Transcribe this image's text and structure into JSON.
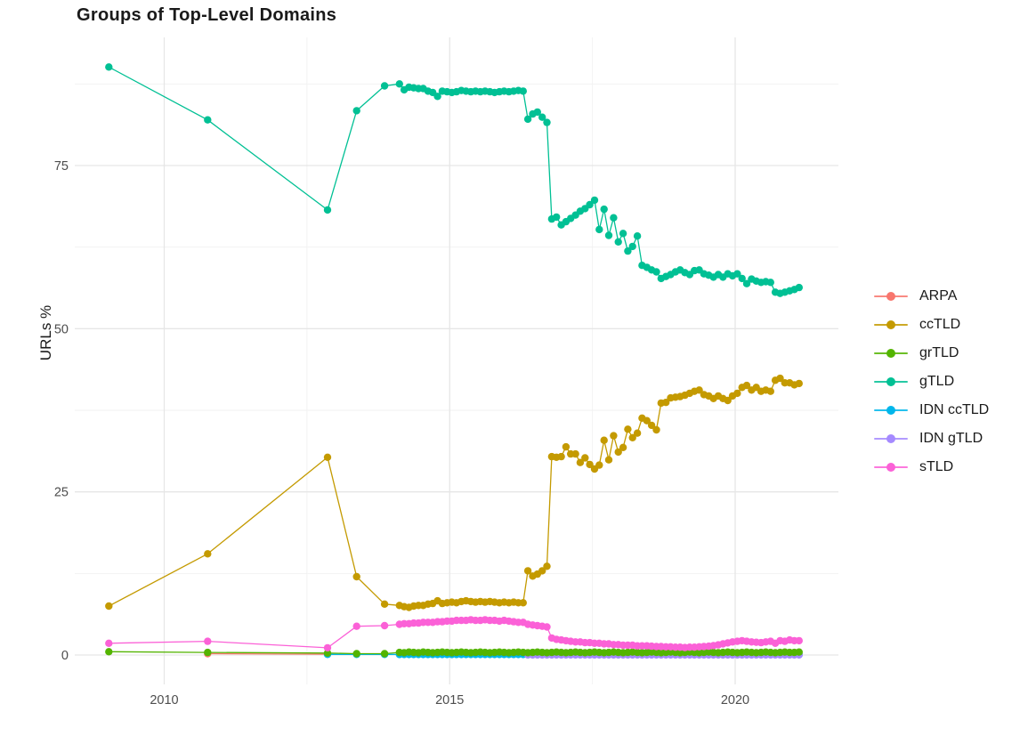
{
  "title": "Groups of Top-Level Domains",
  "chart_data": {
    "type": "line",
    "title": "Groups of Top-Level Domains",
    "xlabel": "",
    "ylabel": "URLs %",
    "xticks": [
      2010,
      2015,
      2020
    ],
    "yticks": [
      0,
      25,
      50,
      75
    ],
    "xlim": [
      2008.43,
      2021.72
    ],
    "ylim": [
      -4.5,
      94.6
    ],
    "grid": true,
    "legend_position": "right",
    "point_shape": "circle",
    "monthly_x_step": 0.0833333,
    "draw_order": [
      "ARPA",
      "IDN ccTLD",
      "IDN gTLD",
      "grTLD",
      "ccTLD",
      "gTLD",
      "sTLD"
    ],
    "series": [
      {
        "name": "ARPA",
        "color": "#F8766D",
        "sparse": [
          [
            2010.76,
            0.2
          ],
          [
            2012.86,
            0.12
          ]
        ],
        "monthly": null
      },
      {
        "name": "ccTLD",
        "color": "#C49A00",
        "sparse": [
          [
            2009.03,
            7.5
          ],
          [
            2010.76,
            15.5
          ],
          [
            2012.86,
            30.3
          ],
          [
            2013.37,
            12.0
          ],
          [
            2013.86,
            7.8
          ]
        ],
        "monthly": {
          "x_start": 2014.12,
          "values": [
            7.6,
            7.4,
            7.3,
            7.5,
            7.6,
            7.6,
            7.8,
            7.9,
            8.3,
            7.9,
            8.0,
            8.1,
            8.0,
            8.2,
            8.3,
            8.2,
            8.1,
            8.2,
            8.1,
            8.2,
            8.1,
            8.0,
            8.1,
            8.0,
            8.1,
            8.0,
            8.0,
            12.9,
            12.1,
            12.4,
            12.9,
            13.6,
            30.4,
            30.3,
            30.4,
            31.9,
            30.8,
            30.8,
            29.5,
            30.2,
            29.2,
            28.5,
            29.1,
            32.9,
            29.9,
            33.6,
            31.1,
            31.8,
            34.6,
            33.3,
            34.0,
            36.3,
            35.9,
            35.2,
            34.5,
            38.6,
            38.7,
            39.4,
            39.5,
            39.6,
            39.8,
            40.1,
            40.4,
            40.6,
            39.9,
            39.7,
            39.3,
            39.7,
            39.3,
            39.0,
            39.7,
            40.1,
            41.0,
            41.3,
            40.6,
            41.0,
            40.4,
            40.6,
            40.4,
            42.1,
            42.4,
            41.7,
            41.7,
            41.4,
            41.6
          ]
        }
      },
      {
        "name": "grTLD",
        "color": "#53B400",
        "sparse": [
          [
            2009.03,
            0.5
          ],
          [
            2010.76,
            0.4
          ],
          [
            2012.86,
            0.3
          ],
          [
            2013.37,
            0.2
          ],
          [
            2013.86,
            0.2
          ]
        ],
        "monthly": {
          "x_start": 2014.12,
          "values": [
            0.4,
            0.35,
            0.45,
            0.4,
            0.35,
            0.45,
            0.4,
            0.35,
            0.4,
            0.45,
            0.4,
            0.35,
            0.4,
            0.45,
            0.4,
            0.35,
            0.4,
            0.45,
            0.4,
            0.35,
            0.4,
            0.45,
            0.4,
            0.35,
            0.4,
            0.45,
            0.4,
            0.35,
            0.4,
            0.45,
            0.4,
            0.35,
            0.4,
            0.45,
            0.4,
            0.35,
            0.4,
            0.45,
            0.4,
            0.35,
            0.4,
            0.45,
            0.4,
            0.35,
            0.4,
            0.45,
            0.4,
            0.35,
            0.4,
            0.45,
            0.4,
            0.35,
            0.4,
            0.45,
            0.4,
            0.35,
            0.4,
            0.45,
            0.4,
            0.35,
            0.4,
            0.45,
            0.4,
            0.35,
            0.4,
            0.45,
            0.4,
            0.35,
            0.4,
            0.45,
            0.4,
            0.35,
            0.4,
            0.45,
            0.4,
            0.35,
            0.4,
            0.45,
            0.4,
            0.35,
            0.4,
            0.45,
            0.4,
            0.4,
            0.45
          ]
        }
      },
      {
        "name": "gTLD",
        "color": "#00C094",
        "sparse": [
          [
            2009.03,
            90.1
          ],
          [
            2010.76,
            82.0
          ],
          [
            2012.86,
            68.2
          ],
          [
            2013.37,
            83.4
          ],
          [
            2013.86,
            87.2
          ]
        ],
        "monthly": {
          "x_start": 2014.12,
          "values": [
            87.5,
            86.6,
            87.0,
            86.9,
            86.8,
            86.8,
            86.4,
            86.2,
            85.6,
            86.4,
            86.3,
            86.2,
            86.3,
            86.5,
            86.4,
            86.3,
            86.4,
            86.3,
            86.4,
            86.3,
            86.2,
            86.3,
            86.4,
            86.3,
            86.4,
            86.5,
            86.4,
            82.1,
            82.9,
            83.2,
            82.4,
            81.6,
            66.8,
            67.1,
            65.9,
            66.4,
            66.9,
            67.4,
            68.0,
            68.4,
            69.0,
            69.7,
            65.2,
            68.3,
            64.3,
            67.0,
            63.3,
            64.6,
            61.9,
            62.6,
            64.2,
            59.7,
            59.4,
            59.0,
            58.7,
            57.7,
            58.0,
            58.3,
            58.7,
            59.0,
            58.6,
            58.3,
            58.9,
            59.0,
            58.4,
            58.2,
            57.9,
            58.3,
            57.9,
            58.4,
            58.1,
            58.4,
            57.7,
            56.9,
            57.6,
            57.3,
            57.1,
            57.2,
            57.1,
            55.6,
            55.4,
            55.6,
            55.8,
            56.0,
            56.3
          ]
        }
      },
      {
        "name": "IDN ccTLD",
        "color": "#00B6EB",
        "sparse": [
          [
            2012.86,
            0.1
          ],
          [
            2013.37,
            0.1
          ],
          [
            2013.86,
            0.1
          ]
        ],
        "monthly": {
          "x_start": 2014.12,
          "values": [
            0.08,
            0.08,
            0.08,
            0.08,
            0.08,
            0.08,
            0.08,
            0.08,
            0.08,
            0.08,
            0.08,
            0.08,
            0.08,
            0.08,
            0.08,
            0.08,
            0.08,
            0.08,
            0.08,
            0.08,
            0.08,
            0.08,
            0.08,
            0.08,
            0.08,
            0.08,
            0.08,
            0.08,
            0.08,
            0.08,
            0.08,
            0.08,
            0.08,
            0.08,
            0.08,
            0.08,
            0.08,
            0.08,
            0.08,
            0.08,
            0.08,
            0.08,
            0.08,
            0.08,
            0.08,
            0.08,
            0.08,
            0.08,
            0.08,
            0.08,
            0.08,
            0.08,
            0.08,
            0.08,
            0.08,
            0.08,
            0.08,
            0.08,
            0.08,
            0.08,
            0.08,
            0.08,
            0.08,
            0.08,
            0.08,
            0.08,
            0.08,
            0.08,
            0.08,
            0.08,
            0.08,
            0.08,
            0.08,
            0.08,
            0.08,
            0.08,
            0.08,
            0.08,
            0.08,
            0.08,
            0.08,
            0.08,
            0.08,
            0.08,
            0.08
          ]
        }
      },
      {
        "name": "IDN gTLD",
        "color": "#A58AFF",
        "sparse": [],
        "monthly": {
          "x_start": 2016.37,
          "values": [
            0.02,
            0.02,
            0.02,
            0.02,
            0.02,
            0.02,
            0.02,
            0.02,
            0.02,
            0.02,
            0.02,
            0.02,
            0.02,
            0.02,
            0.02,
            0.02,
            0.02,
            0.02,
            0.02,
            0.02,
            0.02,
            0.02,
            0.02,
            0.02,
            0.02,
            0.02,
            0.02,
            0.02,
            0.02,
            0.02,
            0.02,
            0.02,
            0.02,
            0.02,
            0.02,
            0.02,
            0.02,
            0.02,
            0.02,
            0.02,
            0.02,
            0.02,
            0.02,
            0.02,
            0.02,
            0.02,
            0.02,
            0.02,
            0.02,
            0.02,
            0.02,
            0.02,
            0.02,
            0.02,
            0.02,
            0.02,
            0.02,
            0.02
          ]
        }
      },
      {
        "name": "sTLD",
        "color": "#FB61D7",
        "sparse": [
          [
            2009.03,
            1.8
          ],
          [
            2010.76,
            2.1
          ],
          [
            2012.86,
            1.1
          ],
          [
            2013.37,
            4.4
          ],
          [
            2013.86,
            4.5
          ]
        ],
        "monthly": {
          "x_start": 2014.12,
          "values": [
            4.7,
            4.8,
            4.8,
            4.9,
            4.9,
            5.0,
            5.0,
            5.0,
            5.1,
            5.1,
            5.2,
            5.2,
            5.3,
            5.3,
            5.3,
            5.4,
            5.3,
            5.3,
            5.4,
            5.3,
            5.3,
            5.2,
            5.3,
            5.2,
            5.1,
            5.0,
            5.0,
            4.7,
            4.6,
            4.5,
            4.4,
            4.3,
            2.6,
            2.4,
            2.3,
            2.2,
            2.1,
            2.0,
            2.0,
            1.9,
            1.9,
            1.8,
            1.8,
            1.7,
            1.7,
            1.6,
            1.6,
            1.5,
            1.5,
            1.5,
            1.4,
            1.4,
            1.4,
            1.35,
            1.3,
            1.3,
            1.25,
            1.25,
            1.2,
            1.2,
            1.15,
            1.2,
            1.2,
            1.25,
            1.3,
            1.35,
            1.45,
            1.55,
            1.7,
            1.85,
            2.0,
            2.1,
            2.2,
            2.1,
            2.0,
            1.95,
            1.9,
            2.0,
            2.1,
            1.8,
            2.2,
            2.1,
            2.3,
            2.2,
            2.2
          ]
        }
      }
    ]
  }
}
